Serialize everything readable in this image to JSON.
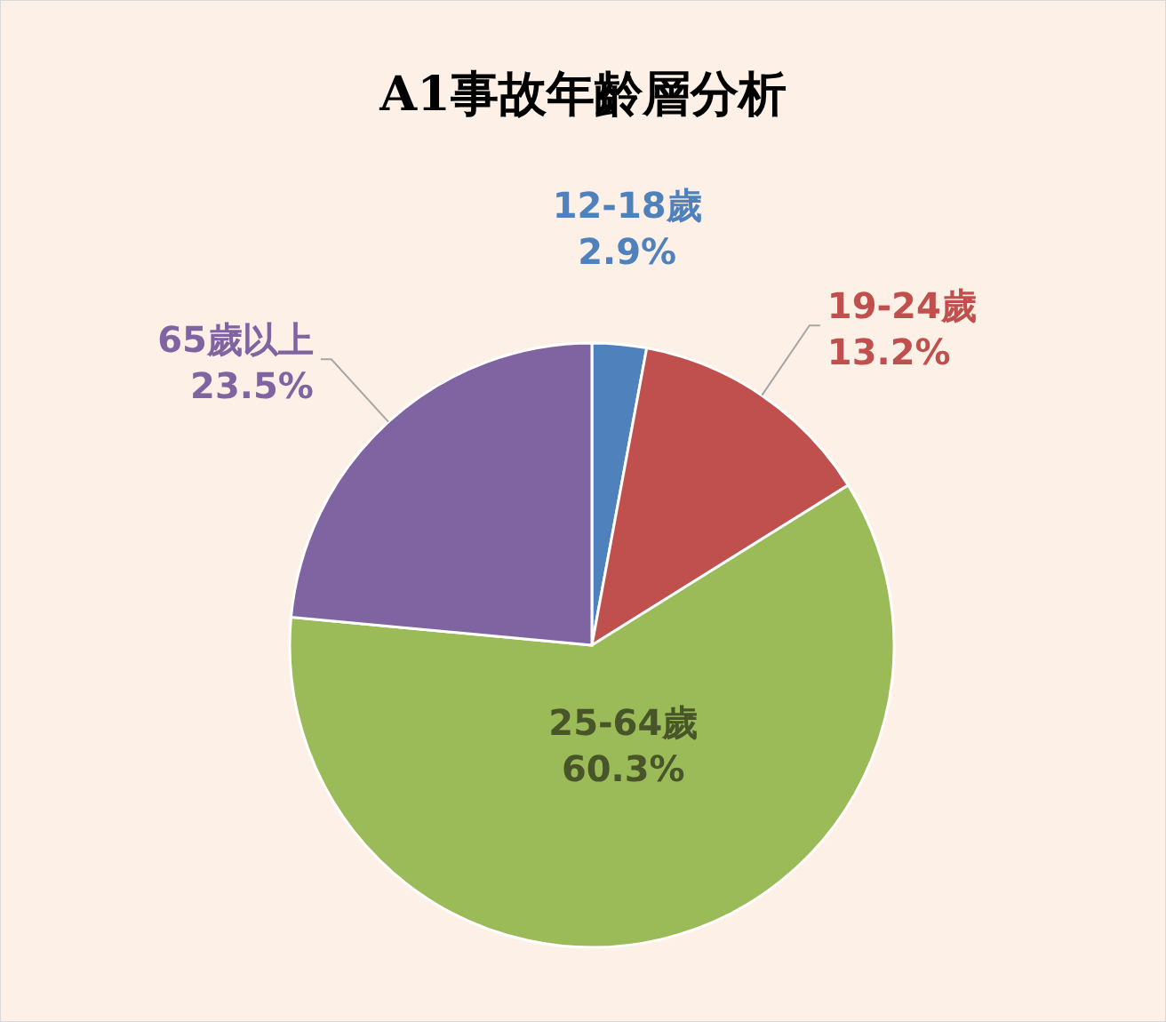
{
  "chart_data": {
    "type": "pie",
    "title": "A1事故年齡層分析",
    "categories": [
      "12-18歲",
      "19-24歲",
      "25-64歲",
      "65歲以上"
    ],
    "values": [
      2.9,
      13.2,
      60.3,
      23.5
    ],
    "colors": [
      "#4f81bd",
      "#c0504d",
      "#9bbb59",
      "#8064a2"
    ],
    "value_labels": [
      "2.9%",
      "13.2%",
      "60.3%",
      "23.5%"
    ]
  }
}
